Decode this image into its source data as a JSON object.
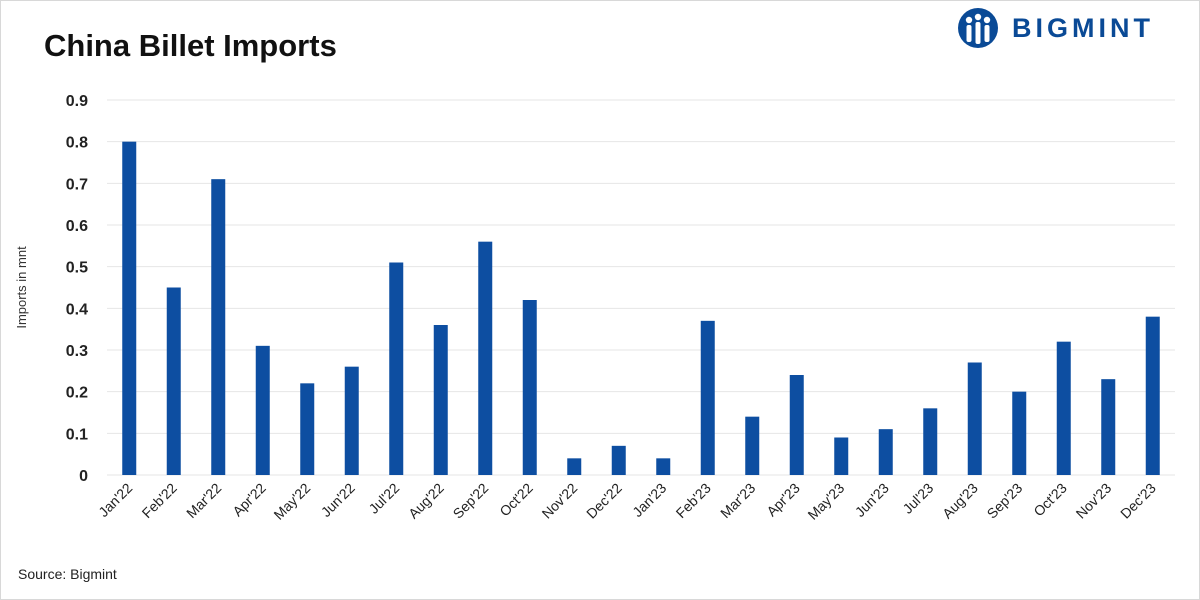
{
  "title": "China Billet Imports",
  "brand": {
    "name": "BIGMINT",
    "logo_icon": "bigmint-logo-icon"
  },
  "source": "Source: Bigmint",
  "colors": {
    "bar": "#0d4ea1",
    "brand": "#0a4a96",
    "grid": "#e6e6e6"
  },
  "chart_data": {
    "type": "bar",
    "title": "China Billet Imports",
    "ylabel": "Imports in mnt",
    "xlabel": "",
    "ylim": [
      0,
      0.9
    ],
    "yticks": [
      "0",
      "0.1",
      "0.2",
      "0.3",
      "0.4",
      "0.5",
      "0.6",
      "0.7",
      "0.8",
      "0.9"
    ],
    "grid": true,
    "legend": "none",
    "categories": [
      "Jan'22",
      "Feb'22",
      "Mar'22",
      "Apr'22",
      "May'22",
      "Jun'22",
      "Jul'22",
      "Aug'22",
      "Sep'22",
      "Oct'22",
      "Nov'22",
      "Dec'22",
      "Jan'23",
      "Feb'23",
      "Mar'23",
      "Apr'23",
      "May'23",
      "Jun'23",
      "Jul'23",
      "Aug'23",
      "Sep'23",
      "Oct'23",
      "Nov'23",
      "Dec'23"
    ],
    "values": [
      0.8,
      0.45,
      0.71,
      0.31,
      0.22,
      0.26,
      0.51,
      0.36,
      0.56,
      0.42,
      0.04,
      0.07,
      0.04,
      0.37,
      0.14,
      0.24,
      0.09,
      0.11,
      0.16,
      0.27,
      0.2,
      0.32,
      0.23,
      0.38
    ]
  }
}
